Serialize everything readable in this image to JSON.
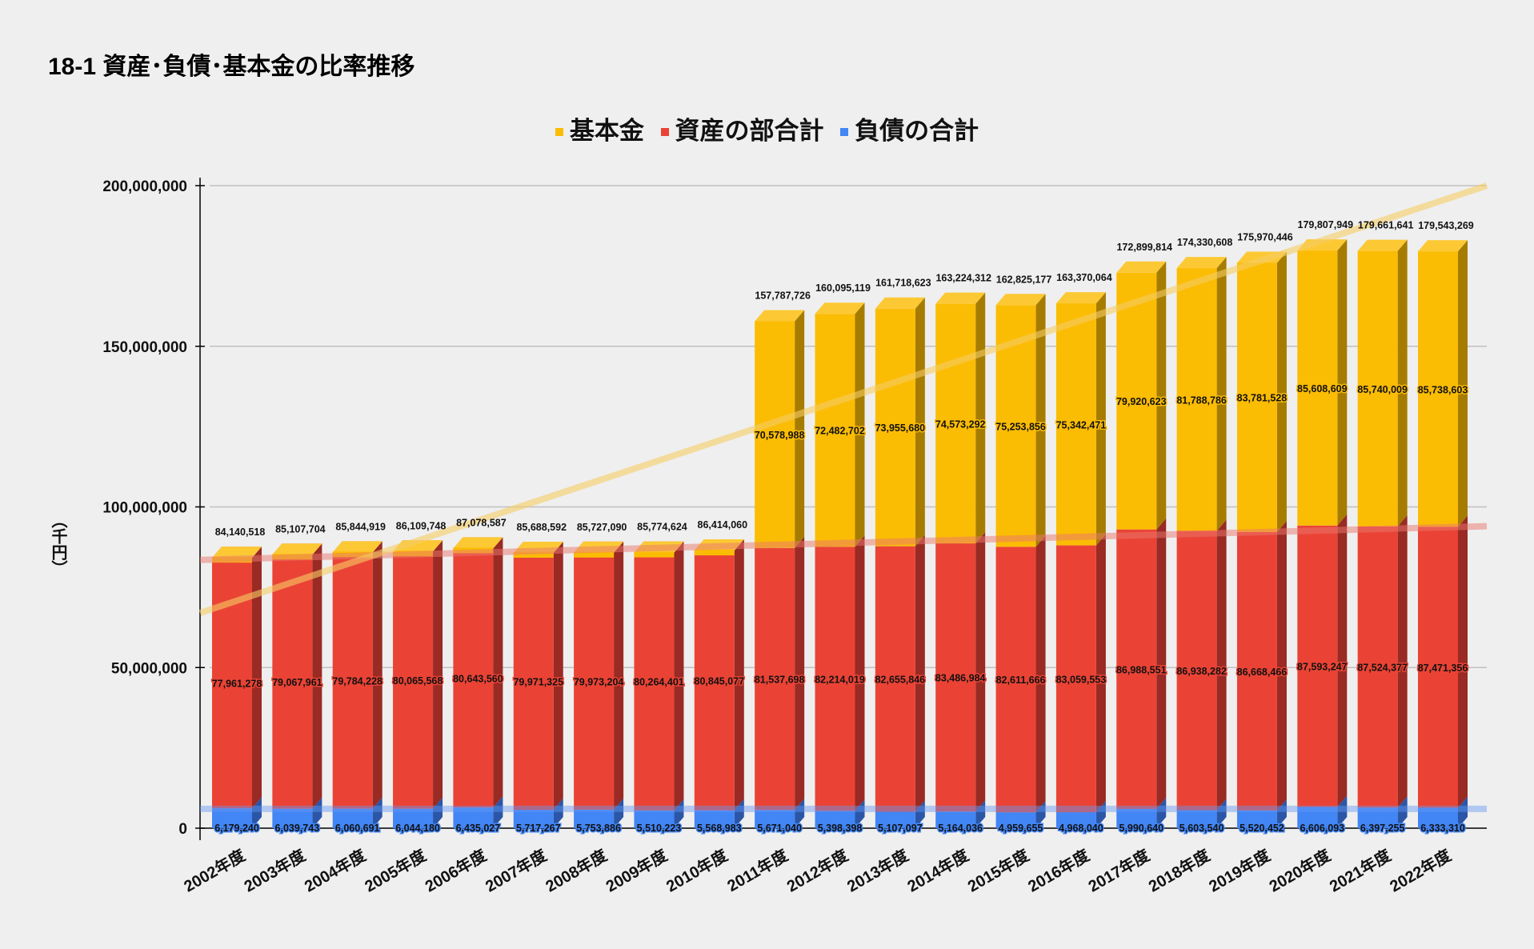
{
  "chart_data": {
    "type": "bar",
    "stacked": true,
    "title": "18-1 資産･負債･基本金の比率推移",
    "ylabel": "（千円）",
    "xlabel": "",
    "ylim": [
      0,
      200000000
    ],
    "yticks": [
      0,
      50000000,
      100000000,
      150000000,
      200000000
    ],
    "ytick_labels": [
      "0",
      "50,000,000",
      "100,000,000",
      "150,000,000",
      "200,000,000"
    ],
    "grid": true,
    "legend_position": "top-center",
    "categories": [
      "2002年度",
      "2003年度",
      "2004年度",
      "2005年度",
      "2006年度",
      "2007年度",
      "2008年度",
      "2009年度",
      "2010年度",
      "2011年度",
      "2012年度",
      "2013年度",
      "2014年度",
      "2015年度",
      "2016年度",
      "2017年度",
      "2018年度",
      "2019年度",
      "2020年度",
      "2021年度",
      "2022年度"
    ],
    "series": [
      {
        "name": "負債の合計",
        "color": "#4285F4",
        "side_color": "#2B56A8",
        "values": [
          6179240,
          6039743,
          6060691,
          6044180,
          6435027,
          5717267,
          5753886,
          5510223,
          5568983,
          5671040,
          5398398,
          5107097,
          5164036,
          4959655,
          4968040,
          5990640,
          5603540,
          5520452,
          6606093,
          6397255,
          6333310
        ],
        "labels": [
          "6,179,240",
          "6,039,743",
          "6,060,691",
          "6,044,180",
          "6,435,027",
          "5,717,267",
          "5,753,886",
          "5,510,223",
          "5,568,983",
          "5,671,040",
          "5,398,398",
          "5,107,097",
          "5,164,036",
          "4,959,655",
          "4,968,040",
          "5,990,640",
          "5,603,540",
          "5,520,452",
          "6,606,093",
          "6,397,255",
          "6,333,310"
        ],
        "trend": [
          6000000,
          6000000
        ]
      },
      {
        "name": "資産の部合計",
        "color": "#EA4335",
        "side_color": "#992A24",
        "values": [
          77961278,
          79067961,
          79784228,
          80065568,
          80643560,
          79971325,
          79973204,
          80264401,
          80845077,
          81537698,
          82214019,
          82655846,
          83486984,
          82611666,
          83059553,
          86988551,
          86938282,
          86668466,
          87593247,
          87524377,
          87471356
        ],
        "labels": [
          "77,961,278",
          "79,067,961",
          "79,784,228",
          "80,065,568",
          "80,643,560",
          "79,971,325",
          "79,973,204",
          "80,264,401",
          "80,845,077",
          "81,537,698",
          "82,214,019",
          "82,655,846",
          "83,486,984",
          "82,611,666",
          "83,059,553",
          "86,988,551",
          "86,938,282",
          "86,668,466",
          "87,593,247",
          "87,524,377",
          "87,471,356"
        ],
        "trend": [
          83500000,
          94000000
        ]
      },
      {
        "name": "基本金",
        "color": "#FBBC04",
        "side_color": "#A67C00",
        "values": [
          0,
          0,
          0,
          0,
          0,
          0,
          0,
          0,
          0,
          70578988,
          72482702,
          73955680,
          74573292,
          75253856,
          75342471,
          79920623,
          81788786,
          83781528,
          85608609,
          85740009,
          85738603
        ],
        "labels": [
          "",
          "",
          "",
          "",
          "",
          "",
          "",
          "",
          "",
          "70,578,988",
          "72,482,702",
          "73,955,680",
          "74,573,292",
          "75,253,856",
          "75,342,471",
          "79,920,623",
          "81,788,786",
          "83,781,528",
          "85,608,609",
          "85,740,009",
          "85,738,603"
        ],
        "trend": [
          67000000,
          200000000
        ]
      }
    ],
    "totals": [
      "84,140,518",
      "85,107,704",
      "85,844,919",
      "86,109,748",
      "87,078,587",
      "85,688,592",
      "85,727,090",
      "85,774,624",
      "86,414,060",
      "157,787,726",
      "160,095,119",
      "161,718,623",
      "163,224,312",
      "162,825,177",
      "163,370,064",
      "172,899,814",
      "174,330,608",
      "175,970,446",
      "179,807,949",
      "179,661,641",
      "179,543,269"
    ]
  },
  "legend": [
    "基本金",
    "資産の部合計",
    "負債の合計"
  ],
  "legend_colors": [
    "#FBBC04",
    "#EA4335",
    "#4285F4"
  ]
}
